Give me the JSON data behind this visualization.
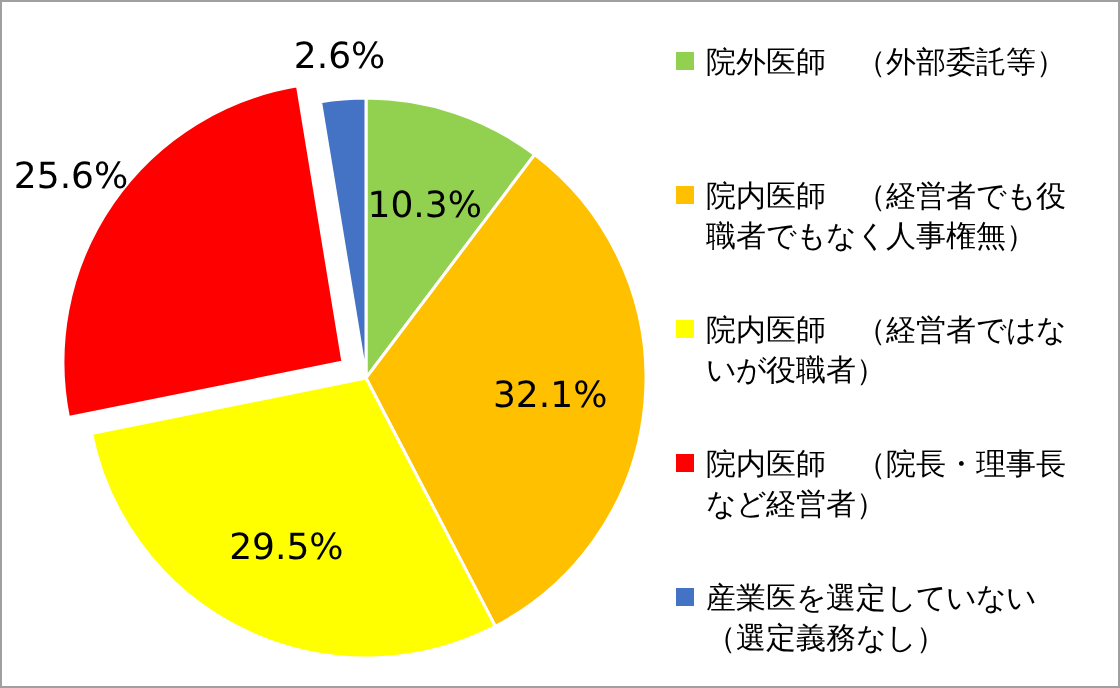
{
  "chart_data": {
    "type": "pie",
    "categories": [
      "院外医師　（外部委託等）",
      "院内医師　（経営者でも役職者でもなく人事権無）",
      "院内医師　（経営者ではないが役職者）",
      "院内医師　（院長・理事長など経営者）",
      "産業医を選定していない（選定義務なし）"
    ],
    "values": [
      10.3,
      32.1,
      29.5,
      25.6,
      2.6
    ],
    "colors": [
      "#92d050",
      "#ffc000",
      "#ffff00",
      "#ff0000",
      "#4472c4"
    ],
    "value_labels": [
      "10.3%",
      "32.1%",
      "29.5%",
      "25.6%",
      "2.6%"
    ],
    "legend": "right"
  }
}
